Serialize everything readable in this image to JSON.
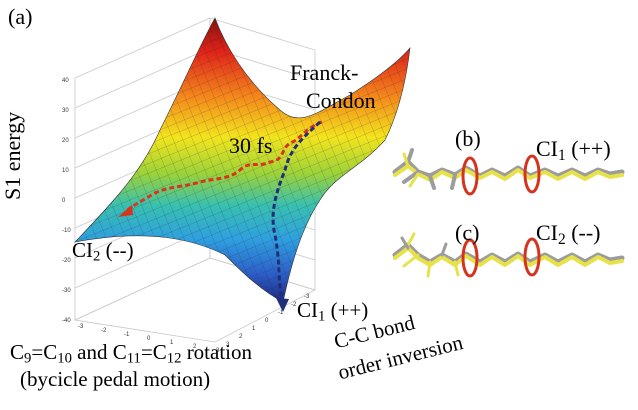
{
  "panel_a": "(a)",
  "panel_b": "(b)",
  "panel_c": "(c)",
  "y_axis_label": "S1 energy",
  "franck_condon_line1": "Franck-",
  "franck_condon_line2": "Condon",
  "time_label": "30 fs",
  "ci1": {
    "main": "CI",
    "sub": "1",
    "suffix": " (++)"
  },
  "ci2": {
    "main": "CI",
    "sub": "2",
    "suffix": " (--)"
  },
  "x_axis": {
    "part1": "C",
    "sub1": "9",
    "part2": "=C",
    "sub2": "10",
    "part3": " and C",
    "sub3": "11",
    "part4": "=C",
    "sub4": "12",
    "part5": " rotation",
    "line2": "(bycicle pedal motion)"
  },
  "z_axis": {
    "line1": "C-C bond",
    "line2": "order inversion"
  },
  "z_ticks": [
    "40",
    "30",
    "20",
    "10",
    "0",
    "-10",
    "-20",
    "-30",
    "-40"
  ],
  "x_ticks": [
    "-3",
    "-2",
    "-1",
    "0",
    "1",
    "2",
    "3"
  ],
  "d_ticks": [
    "3",
    "2",
    "1",
    "0",
    "-1",
    "-2",
    "-3"
  ],
  "colors": {
    "path_red": "#d9341e",
    "path_blue": "#1f2f7a",
    "rotation_arrow": "#d6331f",
    "molecule_yellow": "#e8e24a",
    "molecule_gray": "#9c9c9c"
  }
}
